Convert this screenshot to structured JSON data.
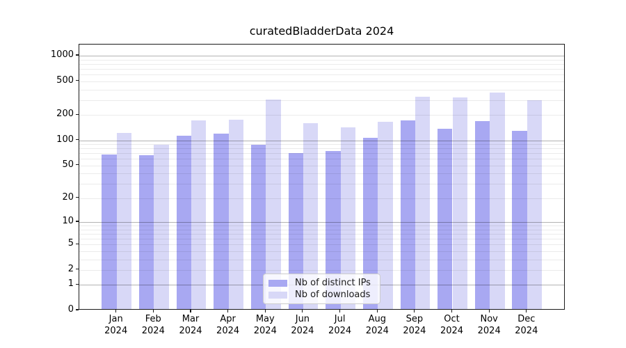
{
  "title": "curatedBladderData 2024",
  "legend": {
    "items": [
      {
        "label": "Nb of distinct IPs",
        "color": "#a8a8f2"
      },
      {
        "label": "Nb of downloads",
        "color": "#d8d8f7"
      }
    ]
  },
  "y_axis": {
    "tick_labels": [
      "0",
      "1",
      "2",
      "5",
      "10",
      "20",
      "50",
      "100",
      "200",
      "500",
      "1000"
    ]
  },
  "x_axis": {
    "year": "2024",
    "months": [
      "Jan",
      "Feb",
      "Mar",
      "Apr",
      "May",
      "Jun",
      "Jul",
      "Aug",
      "Sep",
      "Oct",
      "Nov",
      "Dec"
    ]
  },
  "chart_data": {
    "type": "bar",
    "title": "curatedBladderData 2024",
    "categories": [
      "Jan 2024",
      "Feb 2024",
      "Mar 2024",
      "Apr 2024",
      "May 2024",
      "Jun 2024",
      "Jul 2024",
      "Aug 2024",
      "Sep 2024",
      "Oct 2024",
      "Nov 2024",
      "Dec 2024"
    ],
    "series": [
      {
        "name": "Nb of distinct IPs",
        "color": "#a8a8f2",
        "values": [
          65,
          64,
          109,
          116,
          85,
          68,
          72,
          103,
          165,
          133,
          162,
          124
        ]
      },
      {
        "name": "Nb of downloads",
        "color": "#d8d8f7",
        "values": [
          117,
          85,
          165,
          168,
          291,
          153,
          136,
          160,
          317,
          307,
          355,
          285
        ]
      }
    ],
    "y_scale": "log1p",
    "y_ticks": [
      0,
      1,
      2,
      5,
      10,
      20,
      50,
      100,
      200,
      500,
      1000
    ],
    "grid_major": [
      1,
      10,
      100,
      1000
    ],
    "grid": "on",
    "ylim": [
      0,
      1400
    ],
    "legend_position": "lower center"
  }
}
